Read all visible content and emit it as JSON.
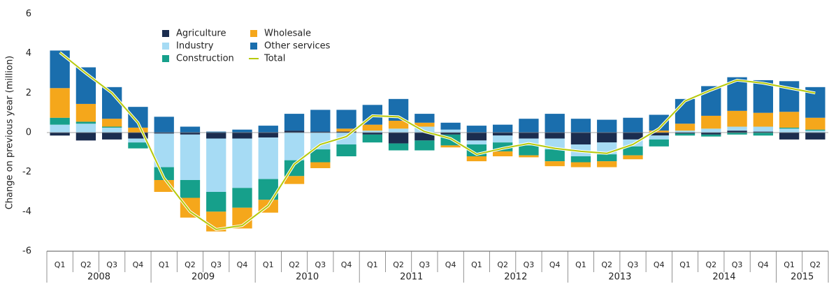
{
  "chart_data": {
    "type": "bar",
    "y_axis_label": "Change on previous year (million)",
    "categories": [
      "Q1",
      "Q2",
      "Q3",
      "Q4",
      "Q1",
      "Q2",
      "Q3",
      "Q4",
      "Q1",
      "Q2",
      "Q3",
      "Q4",
      "Q1",
      "Q2",
      "Q3",
      "Q4",
      "Q1",
      "Q2",
      "Q3",
      "Q4",
      "Q1",
      "Q2",
      "Q3",
      "Q4",
      "Q1",
      "Q2",
      "Q3",
      "Q4",
      "Q1",
      "Q2"
    ],
    "years": [
      "2008",
      "2009",
      "2010",
      "2011",
      "2012",
      "2013",
      "2014",
      "2015"
    ],
    "ylim": [
      -6,
      6
    ],
    "yticks": [
      -6,
      -4,
      -2,
      0,
      2,
      4,
      6
    ],
    "stacked": true,
    "series": [
      {
        "name": "Agriculture",
        "color": "#1b2d4f",
        "values": [
          -0.15,
          -0.4,
          -0.35,
          -0.3,
          -0.05,
          -0.1,
          -0.3,
          -0.3,
          -0.25,
          0.1,
          0.05,
          0.05,
          -0.1,
          -0.55,
          -0.4,
          -0.1,
          -0.4,
          -0.15,
          -0.3,
          -0.3,
          -0.6,
          -0.5,
          -0.35,
          -0.15,
          -0.05,
          -0.1,
          0.1,
          0.05,
          -0.35,
          -0.35
        ]
      },
      {
        "name": "Industry",
        "color": "#a6dbf4",
        "values": [
          0.4,
          0.45,
          0.25,
          -0.2,
          -1.7,
          -2.3,
          -2.7,
          -2.5,
          -2.1,
          -1.4,
          -0.85,
          -0.6,
          0.1,
          0.2,
          0.3,
          0.15,
          -0.2,
          -0.35,
          -0.35,
          -0.55,
          -0.6,
          -0.6,
          -0.35,
          -0.2,
          0.1,
          0.2,
          0.2,
          0.25,
          0.2,
          0.1
        ]
      },
      {
        "name": "Construction",
        "color": "#16a08b",
        "values": [
          0.35,
          0.1,
          0.05,
          -0.3,
          -0.65,
          -0.9,
          -1.0,
          -1.0,
          -1.05,
          -0.8,
          -0.65,
          -0.6,
          -0.4,
          -0.35,
          -0.5,
          -0.55,
          -0.6,
          -0.45,
          -0.5,
          -0.6,
          -0.3,
          -0.35,
          -0.45,
          -0.35,
          -0.1,
          -0.1,
          -0.1,
          -0.15,
          0.05,
          0.05
        ]
      },
      {
        "name": "Wholesale",
        "color": "#f5a71b",
        "values": [
          1.5,
          0.9,
          0.4,
          0.25,
          -0.6,
          -1.0,
          -1.0,
          -1.05,
          -0.65,
          -0.4,
          -0.3,
          0.15,
          0.3,
          0.4,
          0.2,
          -0.1,
          -0.25,
          -0.25,
          -0.1,
          -0.25,
          -0.25,
          -0.3,
          -0.2,
          0.1,
          0.35,
          0.65,
          0.8,
          0.7,
          0.8,
          0.6
        ]
      },
      {
        "name": "Other services",
        "color": "#1a6ead",
        "values": [
          1.9,
          1.85,
          1.6,
          1.05,
          0.8,
          0.3,
          0.05,
          0.15,
          0.35,
          0.85,
          1.1,
          0.95,
          1.0,
          1.1,
          0.45,
          0.35,
          0.35,
          0.4,
          0.7,
          0.95,
          0.7,
          0.65,
          0.75,
          0.8,
          1.25,
          1.5,
          1.7,
          1.65,
          1.55,
          1.55
        ]
      }
    ],
    "line": {
      "name": "Total",
      "color": "#b6c90a",
      "values": [
        4.05,
        3.0,
        2.0,
        0.5,
        -2.3,
        -4.0,
        -4.9,
        -4.7,
        -3.7,
        -1.6,
        -0.6,
        -0.2,
        0.85,
        0.8,
        0.05,
        -0.3,
        -1.1,
        -0.8,
        -0.55,
        -0.8,
        -0.95,
        -1.05,
        -0.6,
        0.2,
        1.6,
        2.15,
        2.65,
        2.5,
        2.25,
        2.0
      ]
    }
  }
}
